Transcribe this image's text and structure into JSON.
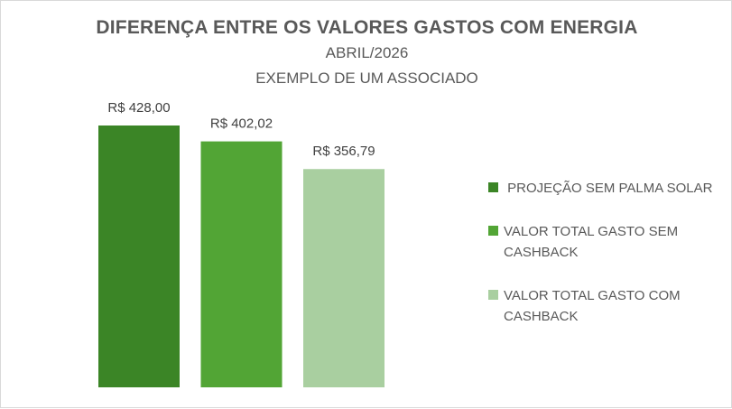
{
  "chart_data": {
    "type": "bar",
    "title": "DIFERENÇA ENTRE OS VALORES GASTOS COM ENERGIA",
    "subtitle_lines": [
      "ABRIL/2026",
      "EXEMPLO DE UM ASSOCIADO"
    ],
    "categories": [
      "PROJEÇÃO SEM PALMA SOLAR",
      "VALOR TOTAL GASTO SEM CASHBACK",
      "VALOR TOTAL GASTO COM CASHBACK"
    ],
    "values": [
      428.0,
      402.02,
      356.79
    ],
    "data_labels": [
      "R$ 428,00",
      "R$ 402,02",
      "R$ 356,79"
    ],
    "colors": [
      "#3b8526",
      "#52a535",
      "#a9cfa0"
    ],
    "legend": {
      "position": "right",
      "entries": [
        {
          "label": " PROJEÇÃO SEM PALMA SOLAR",
          "color": "#3b8526"
        },
        {
          "label": "VALOR TOTAL GASTO SEM CASHBACK",
          "color": "#52a535"
        },
        {
          "label": "VALOR TOTAL GASTO COM CASHBACK",
          "color": "#a9cfa0"
        }
      ]
    },
    "xlabel": "",
    "ylabel": "",
    "ylim": [
      0,
      428
    ],
    "grid": false
  }
}
